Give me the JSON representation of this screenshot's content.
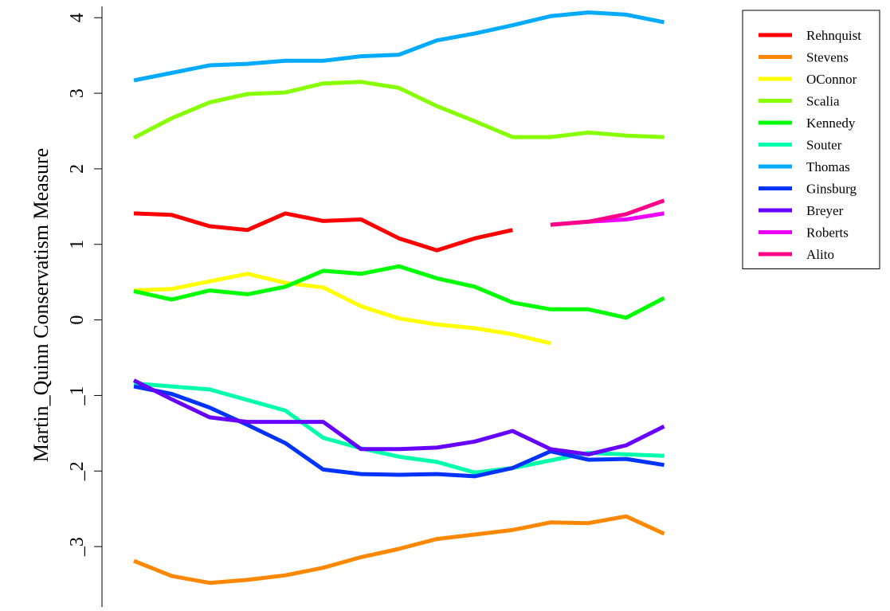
{
  "chart_data": {
    "type": "line",
    "title": "",
    "xlabel": "",
    "ylabel": "Martin_Quinn Conservatism Measure",
    "ylim": [
      -3.8,
      4.15
    ],
    "yticks": [
      {
        "value": 4,
        "label": "4"
      },
      {
        "value": 3,
        "label": "3"
      },
      {
        "value": 2,
        "label": "2"
      },
      {
        "value": 1,
        "label": "1"
      },
      {
        "value": 0,
        "label": "0"
      },
      {
        "value": -1,
        "label": "_1"
      },
      {
        "value": -2,
        "label": "_2"
      },
      {
        "value": -3,
        "label": "_3"
      }
    ],
    "x": [
      1,
      2,
      3,
      4,
      5,
      6,
      7,
      8,
      9,
      10,
      11,
      12,
      13,
      14,
      15,
      16
    ],
    "grid": false,
    "legend_position": "top-right",
    "series": [
      {
        "name": "Rehnquist",
        "color": "#ff0000",
        "values": [
          1.41,
          1.39,
          1.24,
          1.19,
          1.41,
          1.31,
          1.33,
          1.08,
          0.92,
          1.08,
          1.19,
          null,
          null,
          null,
          null,
          null
        ]
      },
      {
        "name": "Stevens",
        "color": "#ff8800",
        "values": [
          -3.19,
          -3.39,
          -3.48,
          -3.44,
          -3.38,
          -3.28,
          -3.14,
          -3.03,
          -2.9,
          -2.84,
          -2.78,
          -2.68,
          -2.69,
          -2.6,
          -2.83,
          null
        ]
      },
      {
        "name": "OConnor",
        "color": "#ffff00",
        "values": [
          0.39,
          0.41,
          0.51,
          0.61,
          0.49,
          0.43,
          0.18,
          0.02,
          -0.06,
          -0.11,
          -0.19,
          -0.31,
          null,
          null,
          null,
          null
        ]
      },
      {
        "name": "Scalia",
        "color": "#88ff00",
        "values": [
          2.41,
          2.67,
          2.88,
          2.99,
          3.01,
          3.13,
          3.15,
          3.07,
          2.83,
          2.63,
          2.42,
          2.42,
          2.48,
          2.44,
          2.42,
          null
        ]
      },
      {
        "name": "Kennedy",
        "color": "#00ff00",
        "values": [
          0.38,
          0.27,
          0.39,
          0.34,
          0.44,
          0.65,
          0.61,
          0.71,
          0.55,
          0.44,
          0.23,
          0.14,
          0.14,
          0.03,
          0.29,
          null
        ]
      },
      {
        "name": "Souter",
        "color": "#00ffaa",
        "values": [
          -0.84,
          -0.88,
          -0.92,
          -1.06,
          -1.2,
          -1.56,
          -1.7,
          -1.81,
          -1.88,
          -2.02,
          -1.96,
          -1.86,
          -1.76,
          -1.78,
          -1.8,
          null
        ]
      },
      {
        "name": "Thomas",
        "color": "#00aaff",
        "values": [
          3.17,
          3.27,
          3.37,
          3.39,
          3.43,
          3.43,
          3.49,
          3.51,
          3.7,
          3.79,
          3.9,
          4.02,
          4.07,
          4.04,
          3.94,
          null
        ]
      },
      {
        "name": "Ginsburg",
        "color": "#0033ff",
        "values": [
          -0.88,
          -0.98,
          -1.16,
          -1.39,
          -1.63,
          -1.98,
          -2.04,
          -2.05,
          -2.04,
          -2.07,
          -1.96,
          -1.74,
          -1.85,
          -1.84,
          -1.92,
          null
        ]
      },
      {
        "name": "Breyer",
        "color": "#6600ff",
        "values": [
          -0.8,
          -1.05,
          -1.29,
          -1.35,
          -1.35,
          -1.35,
          -1.71,
          -1.71,
          -1.69,
          -1.61,
          -1.47,
          -1.71,
          -1.78,
          -1.66,
          -1.41,
          null
        ]
      },
      {
        "name": "Roberts",
        "color": "#ee00ff",
        "values": [
          null,
          null,
          null,
          null,
          null,
          null,
          null,
          null,
          null,
          null,
          null,
          1.26,
          1.3,
          1.33,
          1.41,
          null
        ]
      },
      {
        "name": "Alito",
        "color": "#ff0088",
        "values": [
          null,
          null,
          null,
          null,
          null,
          null,
          null,
          null,
          null,
          null,
          null,
          1.26,
          1.3,
          1.4,
          1.58,
          null
        ]
      }
    ]
  }
}
